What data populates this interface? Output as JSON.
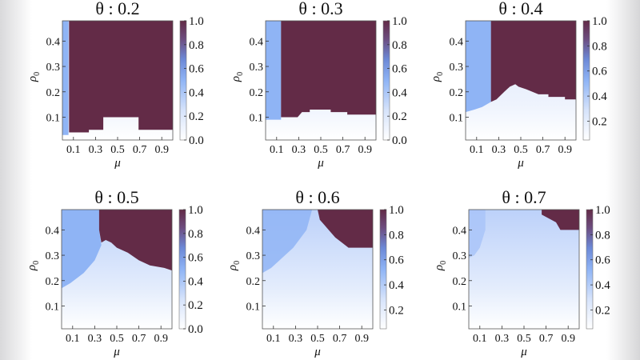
{
  "chart_data": [
    {
      "type": "heatmap",
      "title": "θ : 0.2",
      "xlabel": "μ",
      "ylabel": "ρ0",
      "xlim": [
        0,
        1
      ],
      "ylim": [
        0.01,
        0.48
      ],
      "xticks": [
        "0.1",
        "0.3",
        "0.5",
        "0.7",
        "0.9"
      ],
      "yticks": [
        "0.1",
        "0.2",
        "0.3",
        "0.4"
      ],
      "colorbar": {
        "range": [
          0,
          1
        ],
        "ticks": [
          "0.0",
          "0.2",
          "0.4",
          "0.6",
          "0.8",
          "1.0"
        ]
      },
      "regions": {
        "value_1_region": [
          [
            0.06,
            0.48
          ],
          [
            1,
            0.48
          ],
          [
            1,
            0.05
          ],
          [
            0.69,
            0.05
          ],
          [
            0.69,
            0.1
          ],
          [
            0.37,
            0.1
          ],
          [
            0.37,
            0.05
          ],
          [
            0.24,
            0.05
          ],
          [
            0.24,
            0.04
          ],
          [
            0.06,
            0.04
          ]
        ],
        "value_0_5_region": [
          [
            0,
            0.48
          ],
          [
            0.055,
            0.48
          ],
          [
            0.055,
            0.03
          ],
          [
            0,
            0.03
          ]
        ]
      }
    },
    {
      "type": "heatmap",
      "title": "θ : 0.3",
      "xlabel": "μ",
      "ylabel": "ρ0",
      "xlim": [
        0,
        1
      ],
      "ylim": [
        0.01,
        0.48
      ],
      "xticks": [
        "0.1",
        "0.3",
        "0.5",
        "0.7",
        "0.9"
      ],
      "yticks": [
        "0.1",
        "0.2",
        "0.3",
        "0.4"
      ],
      "colorbar": {
        "range": [
          0,
          1
        ],
        "ticks": [
          "0.0",
          "0.2",
          "0.4",
          "0.6",
          "0.8",
          "1.0"
        ]
      },
      "regions": {
        "value_1_region": [
          [
            0.14,
            0.48
          ],
          [
            1,
            0.48
          ],
          [
            1,
            0.11
          ],
          [
            0.74,
            0.11
          ],
          [
            0.74,
            0.12
          ],
          [
            0.59,
            0.12
          ],
          [
            0.59,
            0.13
          ],
          [
            0.4,
            0.13
          ],
          [
            0.4,
            0.12
          ],
          [
            0.33,
            0.12
          ],
          [
            0.31,
            0.11
          ],
          [
            0.29,
            0.1
          ],
          [
            0.14,
            0.1
          ]
        ],
        "value_0_5_region": [
          [
            0,
            0.48
          ],
          [
            0.14,
            0.48
          ],
          [
            0.14,
            0.09
          ],
          [
            0,
            0.09
          ]
        ]
      }
    },
    {
      "type": "heatmap",
      "title": "θ : 0.4",
      "xlabel": "μ",
      "ylabel": "ρ0",
      "xlim": [
        0,
        1
      ],
      "ylim": [
        0.01,
        0.48
      ],
      "xticks": [
        "0.1",
        "0.3",
        "0.5",
        "0.7",
        "0.9"
      ],
      "yticks": [
        "0.1",
        "0.2",
        "0.3",
        "0.4"
      ],
      "colorbar": {
        "range": [
          0.05,
          1
        ],
        "ticks": [
          "0.2",
          "0.4",
          "0.6",
          "0.8",
          "1.0"
        ]
      },
      "regions": {
        "value_1_region": [
          [
            0.23,
            0.48
          ],
          [
            1,
            0.48
          ],
          [
            1,
            0.17
          ],
          [
            0.9,
            0.17
          ],
          [
            0.9,
            0.18
          ],
          [
            0.75,
            0.18
          ],
          [
            0.75,
            0.19
          ],
          [
            0.66,
            0.19
          ],
          [
            0.55,
            0.21
          ],
          [
            0.48,
            0.22
          ],
          [
            0.45,
            0.23
          ],
          [
            0.4,
            0.22
          ],
          [
            0.35,
            0.2
          ],
          [
            0.28,
            0.17
          ],
          [
            0.23,
            0.16
          ]
        ],
        "value_0_5_region": [
          [
            0,
            0.48
          ],
          [
            0.23,
            0.48
          ],
          [
            0.23,
            0.16
          ],
          [
            0.15,
            0.14
          ],
          [
            0.08,
            0.13
          ],
          [
            0,
            0.12
          ]
        ]
      }
    },
    {
      "type": "heatmap",
      "title": "θ : 0.5",
      "xlabel": "μ",
      "ylabel": "ρ0",
      "xlim": [
        0,
        1
      ],
      "ylim": [
        0.01,
        0.48
      ],
      "xticks": [
        "0.1",
        "0.3",
        "0.5",
        "0.7",
        "0.9"
      ],
      "yticks": [
        "0.1",
        "0.2",
        "0.3",
        "0.4"
      ],
      "colorbar": {
        "range": [
          0,
          1
        ],
        "ticks": [
          "0.0",
          "0.2",
          "0.4",
          "0.6",
          "0.8",
          "1.0"
        ]
      },
      "regions": {
        "value_1_region": [
          [
            0.34,
            0.48
          ],
          [
            1,
            0.48
          ],
          [
            1,
            0.24
          ],
          [
            0.93,
            0.25
          ],
          [
            0.8,
            0.26
          ],
          [
            0.7,
            0.28
          ],
          [
            0.6,
            0.31
          ],
          [
            0.5,
            0.33
          ],
          [
            0.45,
            0.35
          ],
          [
            0.4,
            0.36
          ],
          [
            0.36,
            0.35
          ],
          [
            0.34,
            0.4
          ]
        ],
        "value_0_5_region": [
          [
            0,
            0.48
          ],
          [
            0.34,
            0.48
          ],
          [
            0.34,
            0.4
          ],
          [
            0.36,
            0.34
          ],
          [
            0.3,
            0.28
          ],
          [
            0.2,
            0.23
          ],
          [
            0.08,
            0.19
          ],
          [
            0,
            0.17
          ]
        ]
      }
    },
    {
      "type": "heatmap",
      "title": "θ : 0.6",
      "xlabel": "μ",
      "ylabel": "ρ0",
      "xlim": [
        0,
        1
      ],
      "ylim": [
        0.01,
        0.48
      ],
      "xticks": [
        "0.1",
        "0.3",
        "0.5",
        "0.7",
        "0.9"
      ],
      "yticks": [
        "0.1",
        "0.2",
        "0.3",
        "0.4"
      ],
      "colorbar": {
        "range": [
          0.05,
          1
        ],
        "ticks": [
          "0.2",
          "0.4",
          "0.6",
          "0.8",
          "1.0"
        ]
      },
      "regions": {
        "value_1_region": [
          [
            0.5,
            0.48
          ],
          [
            1,
            0.48
          ],
          [
            1,
            0.33
          ],
          [
            0.78,
            0.33
          ],
          [
            0.72,
            0.35
          ],
          [
            0.66,
            0.37
          ],
          [
            0.6,
            0.4
          ],
          [
            0.56,
            0.42
          ],
          [
            0.52,
            0.44
          ],
          [
            0.5,
            0.48
          ]
        ],
        "value_0_5_region": [
          [
            0,
            0.48
          ],
          [
            0.45,
            0.48
          ],
          [
            0.4,
            0.4
          ],
          [
            0.28,
            0.33
          ],
          [
            0.18,
            0.29
          ],
          [
            0.08,
            0.25
          ],
          [
            0,
            0.23
          ]
        ]
      }
    },
    {
      "type": "heatmap",
      "title": "θ : 0.7",
      "xlabel": "μ",
      "ylabel": "ρ0",
      "xlim": [
        0,
        1
      ],
      "ylim": [
        0.01,
        0.48
      ],
      "xticks": [
        "0.1",
        "0.3",
        "0.5",
        "0.7",
        "0.9"
      ],
      "yticks": [
        "0.1",
        "0.2",
        "0.3",
        "0.4"
      ],
      "colorbar": {
        "range": [
          0.05,
          1
        ],
        "ticks": [
          "0.2",
          "0.4",
          "0.6",
          "0.8",
          "1.0"
        ]
      },
      "regions": {
        "value_1_region": [
          [
            0.66,
            0.48
          ],
          [
            1,
            0.48
          ],
          [
            1,
            0.4
          ],
          [
            0.83,
            0.4
          ],
          [
            0.79,
            0.43
          ],
          [
            0.66,
            0.46
          ]
        ],
        "value_0_5_region": [
          [
            0,
            0.48
          ],
          [
            0.15,
            0.48
          ],
          [
            0.15,
            0.4
          ],
          [
            0.1,
            0.33
          ],
          [
            0.05,
            0.3
          ],
          [
            0,
            0.29
          ]
        ]
      }
    }
  ],
  "colors": {
    "high": "#632b47",
    "mid": "#8fb4f5",
    "low": "#ffffff"
  }
}
